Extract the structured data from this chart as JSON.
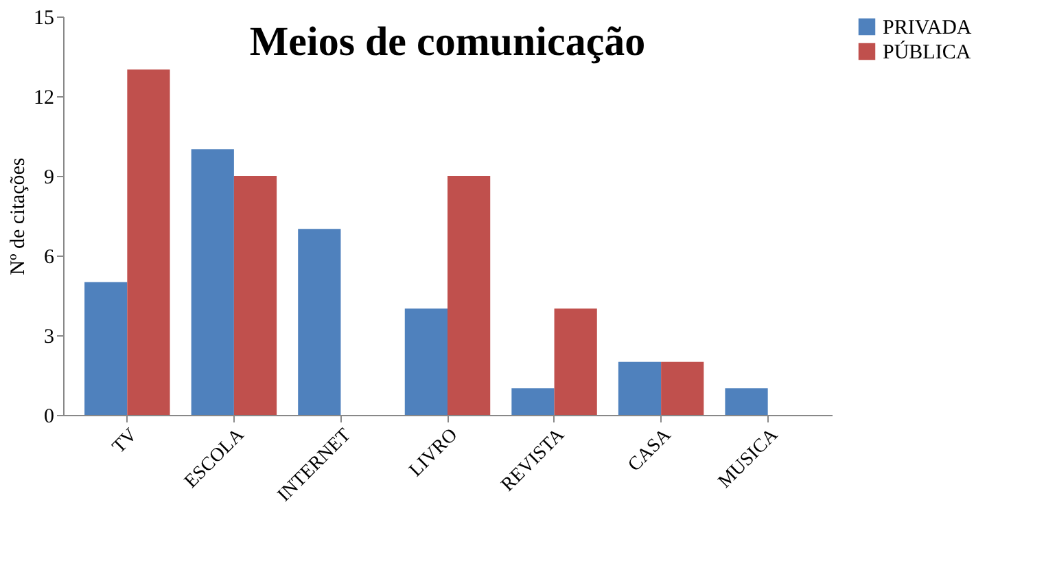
{
  "chart_data": {
    "type": "bar",
    "title": "Meios de comunicação",
    "ylabel": "Nº de citações",
    "categories": [
      "TV",
      "ESCOLA",
      "INTERNET",
      "LIVRO",
      "REVISTA",
      "CASA",
      "MUSICA"
    ],
    "series": [
      {
        "name": "PRIVADA",
        "color": "#4f81bd",
        "values": [
          5,
          10,
          7,
          4,
          1,
          2,
          1
        ]
      },
      {
        "name": "PÚBLICA",
        "color": "#c0504d",
        "values": [
          13,
          9,
          0,
          9,
          4,
          2,
          0
        ]
      }
    ],
    "ylim": [
      0,
      15
    ],
    "yticks": [
      0,
      3,
      6,
      9,
      12,
      15
    ],
    "grid": false,
    "legend": "right"
  }
}
